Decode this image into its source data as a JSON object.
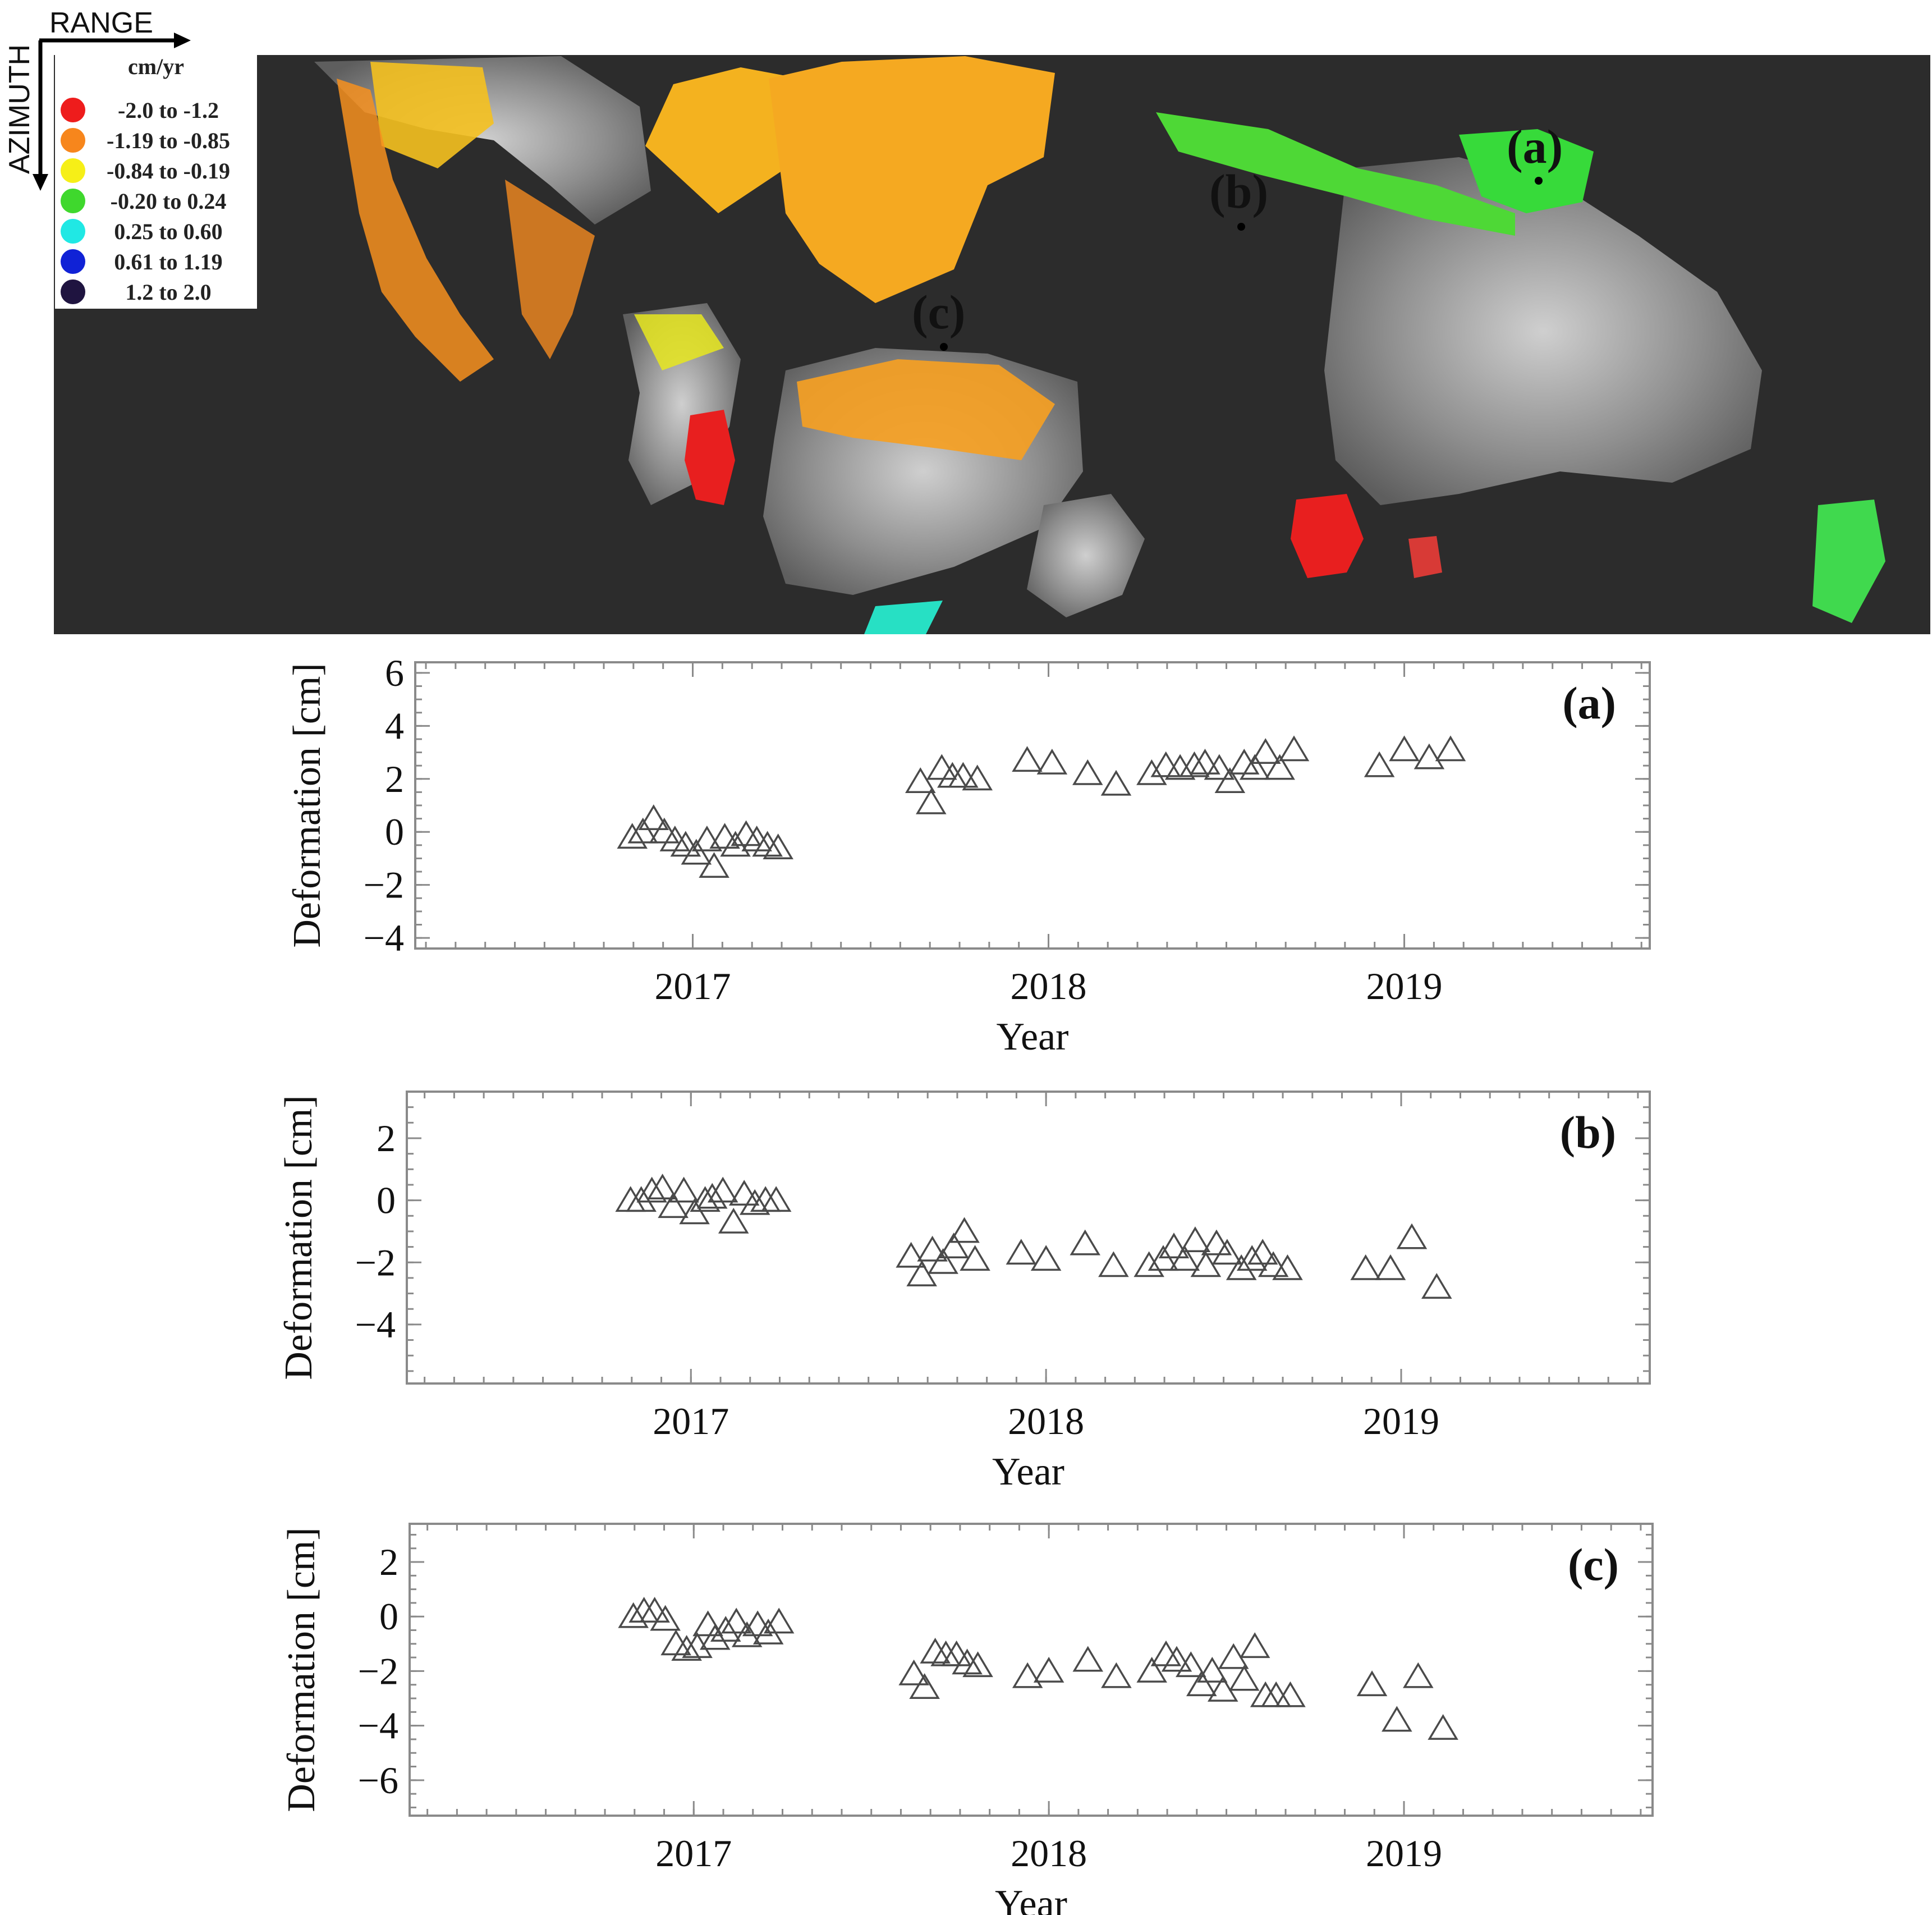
{
  "map": {
    "direction_labels": {
      "range": "RANGE",
      "azimuth": "AZIMUTH"
    },
    "legend": {
      "unit": "cm/yr",
      "classes": [
        {
          "label": "-2.0 to -1.2",
          "color": "#ee1c1c"
        },
        {
          "label": "-1.19 to -0.85",
          "color": "#f7861c"
        },
        {
          "label": "-0.84 to -0.19",
          "color": "#f6ef17"
        },
        {
          "label": "-0.20 to 0.24",
          "color": "#3fd82d"
        },
        {
          "label": "0.25 to 0.60",
          "color": "#20e8e4"
        },
        {
          "label": "0.61 to 1.19",
          "color": "#1022d6"
        },
        {
          "label": "1.2 to 2.0",
          "color": "#1f1440"
        }
      ]
    },
    "site_labels": [
      "(a)",
      "(b)",
      "(c)"
    ]
  },
  "chart_data": [
    {
      "type": "scatter",
      "panel_label": "(a)",
      "xlabel": "Year",
      "ylabel": "Deformation [cm]",
      "xticks": [
        2017,
        2018,
        2019
      ],
      "yticks": [
        6,
        4,
        2,
        0,
        -2,
        -4
      ],
      "xlim": [
        2016.22,
        2019.69
      ],
      "ylim": [
        -4.4,
        6.4
      ],
      "x": [
        2016.83,
        2016.86,
        2016.89,
        2016.92,
        2016.95,
        2016.98,
        2017.01,
        2017.04,
        2017.06,
        2017.09,
        2017.12,
        2017.15,
        2017.18,
        2017.21,
        2017.24,
        2017.64,
        2017.67,
        2017.7,
        2017.73,
        2017.76,
        2017.8,
        2017.94,
        2018.01,
        2018.11,
        2018.19,
        2018.29,
        2018.33,
        2018.37,
        2018.41,
        2018.44,
        2018.48,
        2018.51,
        2018.55,
        2018.58,
        2018.61,
        2018.65,
        2018.69,
        2018.93,
        2019.0,
        2019.07,
        2019.13
      ],
      "y": [
        -0.2,
        0.0,
        0.5,
        0.0,
        -0.3,
        -0.5,
        -0.8,
        -0.3,
        -1.3,
        -0.2,
        -0.5,
        -0.1,
        -0.3,
        -0.5,
        -0.6,
        1.9,
        1.1,
        2.4,
        2.1,
        2.1,
        2.0,
        2.7,
        2.6,
        2.2,
        1.8,
        2.2,
        2.5,
        2.4,
        2.5,
        2.6,
        2.4,
        1.9,
        2.6,
        2.4,
        3.0,
        2.4,
        3.1,
        2.5,
        3.1,
        2.8,
        3.1
      ]
    },
    {
      "type": "scatter",
      "panel_label": "(b)",
      "xlabel": "Year",
      "ylabel": "Deformation [cm]",
      "xticks": [
        2017,
        2018,
        2019
      ],
      "yticks": [
        2,
        0,
        -2,
        -4
      ],
      "xlim": [
        2016.2,
        2019.7
      ],
      "ylim": [
        -5.9,
        3.5
      ],
      "x": [
        2016.83,
        2016.86,
        2016.89,
        2016.92,
        2016.95,
        2016.98,
        2017.01,
        2017.04,
        2017.06,
        2017.09,
        2017.12,
        2017.15,
        2017.18,
        2017.21,
        2017.24,
        2017.62,
        2017.65,
        2017.68,
        2017.71,
        2017.74,
        2017.77,
        2017.8,
        2017.93,
        2018.0,
        2018.11,
        2018.19,
        2018.29,
        2018.33,
        2018.36,
        2018.39,
        2018.42,
        2018.45,
        2018.48,
        2018.51,
        2018.55,
        2018.58,
        2018.61,
        2018.64,
        2018.68,
        2018.9,
        2018.97,
        2019.03,
        2019.1
      ],
      "y": [
        0.0,
        0.0,
        0.3,
        0.4,
        -0.2,
        0.3,
        -0.4,
        0.0,
        0.1,
        0.3,
        -0.7,
        0.2,
        -0.1,
        0.0,
        0.0,
        -1.8,
        -2.4,
        -1.6,
        -2.0,
        -1.5,
        -1.0,
        -1.9,
        -1.7,
        -1.9,
        -1.4,
        -2.1,
        -2.1,
        -1.9,
        -1.5,
        -1.9,
        -1.3,
        -2.1,
        -1.4,
        -1.7,
        -2.2,
        -1.9,
        -1.7,
        -2.1,
        -2.2,
        -2.2,
        -2.2,
        -1.2,
        -2.8
      ]
    },
    {
      "type": "scatter",
      "panel_label": "(c)",
      "xlabel": "Year",
      "ylabel": "Deformation [cm]",
      "xticks": [
        2017,
        2018,
        2019
      ],
      "yticks": [
        2,
        0,
        -2,
        -4,
        -6
      ],
      "xlim": [
        2016.2,
        2019.7
      ],
      "ylim": [
        -7.3,
        3.4
      ],
      "x": [
        2016.83,
        2016.86,
        2016.89,
        2016.92,
        2016.95,
        2016.98,
        2017.01,
        2017.04,
        2017.06,
        2017.09,
        2017.12,
        2017.15,
        2017.18,
        2017.21,
        2017.24,
        2017.62,
        2017.65,
        2017.68,
        2017.71,
        2017.74,
        2017.77,
        2017.8,
        2017.94,
        2018.0,
        2018.11,
        2018.19,
        2018.29,
        2018.33,
        2018.36,
        2018.4,
        2018.43,
        2018.46,
        2018.49,
        2018.52,
        2018.55,
        2018.58,
        2018.61,
        2018.64,
        2018.68,
        2018.91,
        2018.98,
        2019.04,
        2019.11
      ],
      "y": [
        0.0,
        0.2,
        0.2,
        -0.1,
        -1.0,
        -1.2,
        -1.1,
        -0.3,
        -0.8,
        -0.5,
        -0.2,
        -0.7,
        -0.3,
        -0.6,
        -0.2,
        -2.1,
        -2.6,
        -1.3,
        -1.4,
        -1.4,
        -1.7,
        -1.8,
        -2.2,
        -2.0,
        -1.6,
        -2.2,
        -2.0,
        -1.4,
        -1.6,
        -1.8,
        -2.5,
        -2.0,
        -2.7,
        -1.5,
        -2.3,
        -1.1,
        -2.9,
        -2.9,
        -2.9,
        -2.5,
        -3.8,
        -2.2,
        -4.1
      ]
    }
  ]
}
